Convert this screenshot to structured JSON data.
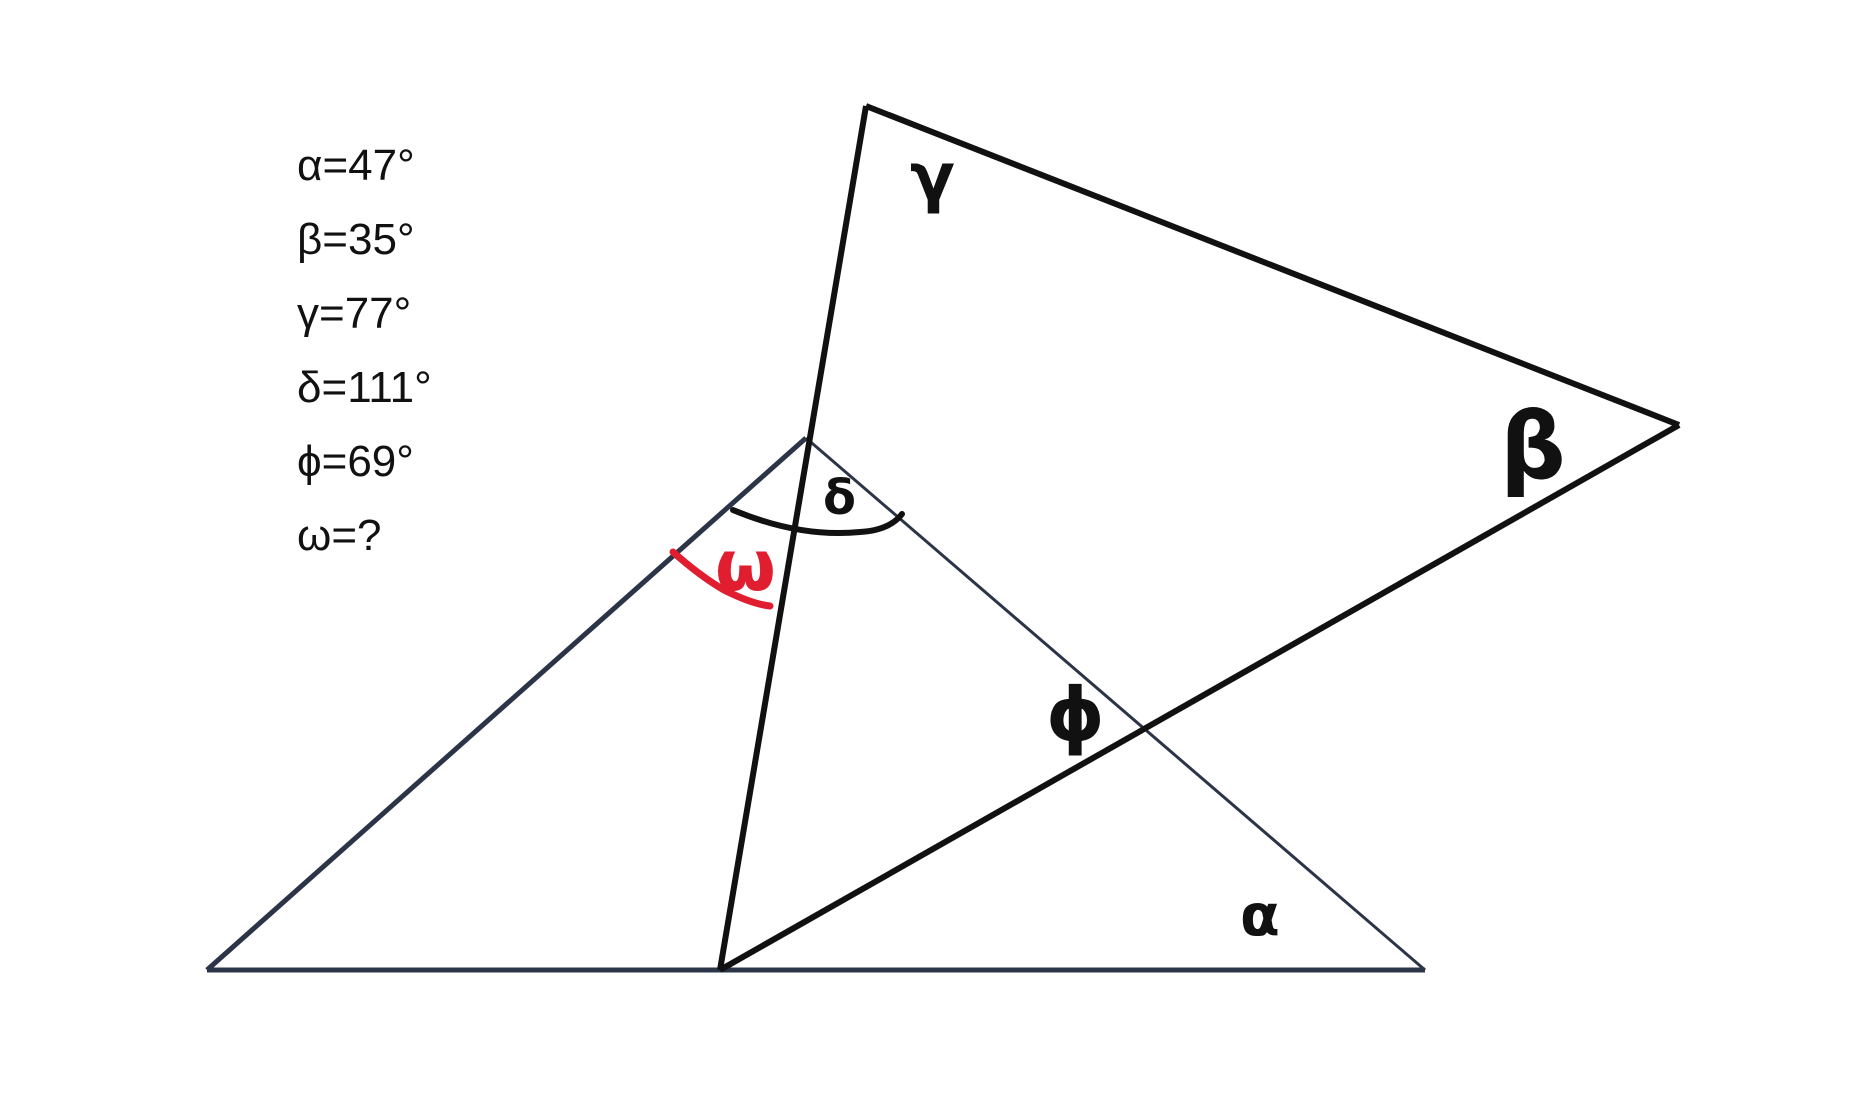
{
  "given": [
    {
      "symbol": "α",
      "value": "47°",
      "text": "α=47°"
    },
    {
      "symbol": "β",
      "value": "35°",
      "text": "β=35°"
    },
    {
      "symbol": "γ",
      "value": "77°",
      "text": "γ=77°"
    },
    {
      "symbol": "δ",
      "value": "111°",
      "text": "δ=111°"
    },
    {
      "symbol": "ϕ",
      "value": "69°",
      "text": "ϕ=69°"
    },
    {
      "symbol": "ω",
      "value": "?",
      "text": "ω=?"
    }
  ],
  "labels": {
    "gamma": "γ",
    "beta": "β",
    "delta": "δ",
    "phi": "ϕ",
    "alpha": "α",
    "omega": "ω"
  },
  "colors": {
    "black_lines": "#111111",
    "navy_lines": "#2b3547",
    "omega_red": "#e01e2f"
  }
}
